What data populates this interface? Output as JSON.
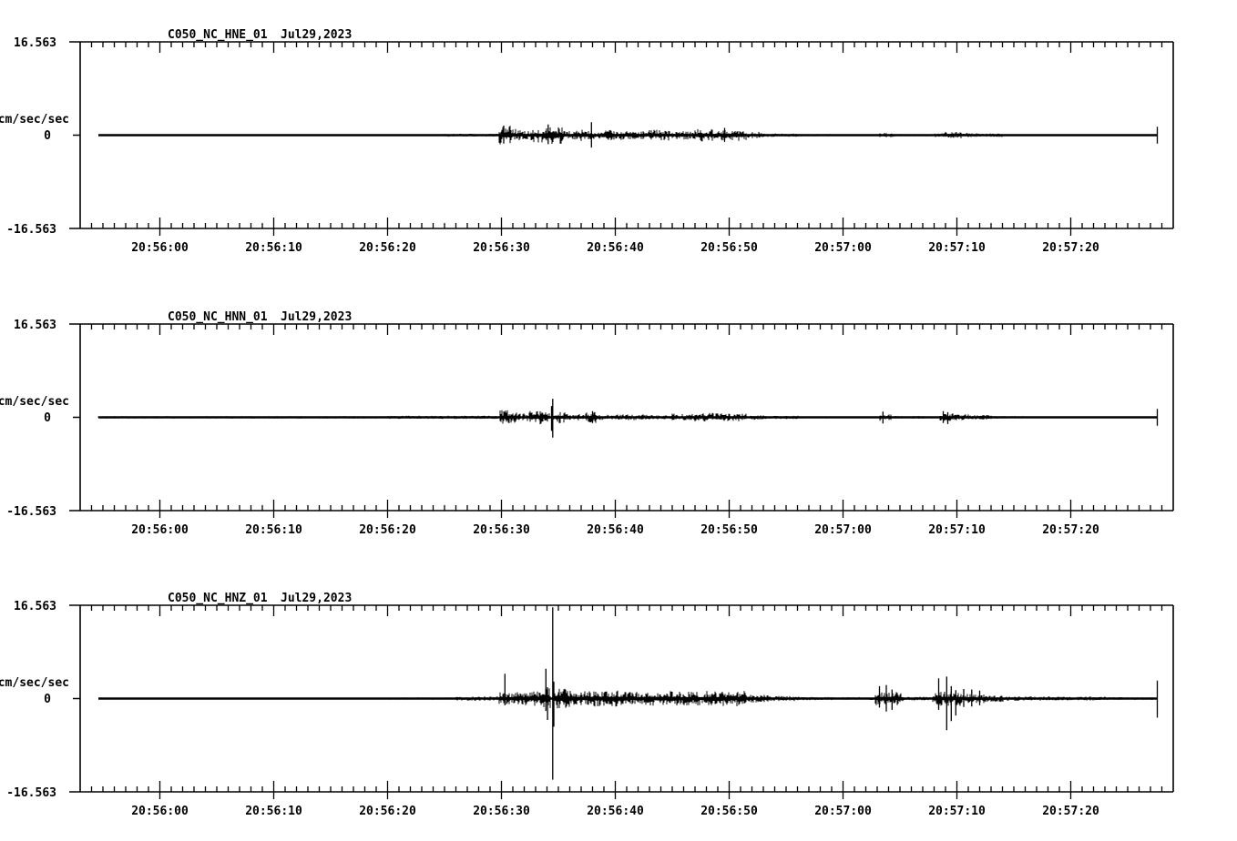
{
  "page": {
    "background_color": "#ffffff",
    "ink_color": "#000000",
    "kind": "seismogram strip chart, 3 stacked traces"
  },
  "chart_data": [
    {
      "type": "line",
      "title": "C050_NC_HNE_01",
      "date": "Jul29,2023",
      "ylabel": "cm/sec/sec",
      "yticks": [
        "16.563",
        "0",
        "-16.563"
      ],
      "ylim": [
        -16.563,
        16.563
      ],
      "x_start_time": "20:55:53",
      "x_end_time": "20:57:29",
      "x_span_sec": 96,
      "x_minor_step_sec": 1,
      "x_major_ticks": [
        "20:56:00",
        "20:56:10",
        "20:56:20",
        "20:56:30",
        "20:56:40",
        "20:56:50",
        "20:57:00",
        "20:57:10",
        "20:57:20"
      ],
      "x_major_offsets_sec": [
        7,
        17,
        27,
        37,
        47,
        57,
        67,
        77,
        87
      ],
      "grid": false,
      "legend": "none",
      "trace": {
        "start_sec": 1.6,
        "end_sec": 94.6,
        "envelope": [
          [
            1.6,
            27,
            0.04
          ],
          [
            27,
            32,
            0.1
          ],
          [
            32,
            36.6,
            0.2
          ],
          [
            36.8,
            37.8,
            1.3
          ],
          [
            37.8,
            38.6,
            0.9
          ],
          [
            38.6,
            39.6,
            0.6
          ],
          [
            39.6,
            40.6,
            1.0
          ],
          [
            40.6,
            42.4,
            1.2
          ],
          [
            42.4,
            43.6,
            0.6
          ],
          [
            43.6,
            44.6,
            0.8
          ],
          [
            44.6,
            46,
            0.55
          ],
          [
            46,
            48,
            0.7
          ],
          [
            48,
            50,
            0.55
          ],
          [
            50,
            52,
            0.75
          ],
          [
            52,
            54,
            0.6
          ],
          [
            54,
            56,
            0.85
          ],
          [
            56,
            58.5,
            0.8
          ],
          [
            58.5,
            60,
            0.45
          ],
          [
            60,
            63,
            0.25
          ],
          [
            63,
            66,
            0.15
          ],
          [
            66,
            70,
            0.1
          ],
          [
            70.2,
            71.5,
            0.35
          ],
          [
            71.5,
            75,
            0.15
          ],
          [
            75,
            76,
            0.3
          ],
          [
            76,
            77.5,
            0.45
          ],
          [
            77.5,
            79,
            0.3
          ],
          [
            79,
            81,
            0.25
          ],
          [
            81,
            86,
            0.12
          ],
          [
            86,
            94.4,
            0.06
          ]
        ],
        "spikes": [
          [
            37.2,
            1.7,
            1.5
          ],
          [
            41.1,
            1.9,
            1.6
          ],
          [
            44.9,
            2.3,
            2.2
          ],
          [
            56.6,
            1.3,
            1.2
          ],
          [
            94.6,
            1.5,
            1.5
          ]
        ]
      }
    },
    {
      "type": "line",
      "title": "C050_NC_HNN_01",
      "date": "Jul29,2023",
      "ylabel": "cm/sec/sec",
      "yticks": [
        "16.563",
        "0",
        "-16.563"
      ],
      "ylim": [
        -16.563,
        16.563
      ],
      "x_start_time": "20:55:53",
      "x_end_time": "20:57:29",
      "x_span_sec": 96,
      "x_minor_step_sec": 1,
      "x_major_ticks": [
        "20:56:00",
        "20:56:10",
        "20:56:20",
        "20:56:30",
        "20:56:40",
        "20:56:50",
        "20:57:00",
        "20:57:10",
        "20:57:20"
      ],
      "x_major_offsets_sec": [
        7,
        17,
        27,
        37,
        47,
        57,
        67,
        77,
        87
      ],
      "grid": false,
      "legend": "none",
      "trace": {
        "start_sec": 1.6,
        "end_sec": 94.6,
        "envelope": [
          [
            1.6,
            27,
            0.16
          ],
          [
            27,
            36.6,
            0.22
          ],
          [
            36.9,
            38.3,
            1.05
          ],
          [
            38.3,
            39.4,
            0.55
          ],
          [
            39.4,
            41.2,
            0.95
          ],
          [
            41.6,
            42.6,
            0.8
          ],
          [
            42.6,
            44.4,
            0.45
          ],
          [
            44.4,
            45.3,
            0.85
          ],
          [
            45.3,
            47,
            0.35
          ],
          [
            47,
            50,
            0.4
          ],
          [
            50,
            52,
            0.3
          ],
          [
            52,
            54,
            0.5
          ],
          [
            54,
            56,
            0.6
          ],
          [
            56,
            58.5,
            0.55
          ],
          [
            58.5,
            60,
            0.35
          ],
          [
            60,
            63,
            0.22
          ],
          [
            63,
            66,
            0.15
          ],
          [
            66,
            70,
            0.12
          ],
          [
            70.2,
            71.2,
            0.5
          ],
          [
            71.2,
            75,
            0.18
          ],
          [
            75.5,
            76.6,
            0.55
          ],
          [
            76.6,
            78,
            0.4
          ],
          [
            78,
            80,
            0.3
          ],
          [
            80,
            83,
            0.18
          ],
          [
            83,
            94.4,
            0.09
          ]
        ],
        "spikes": [
          [
            41.4,
            2.0,
            2.4
          ],
          [
            41.5,
            3.3,
            3.6
          ],
          [
            45.0,
            1.1,
            1.0
          ],
          [
            70.5,
            1.0,
            1.1
          ],
          [
            75.8,
            1.1,
            1.0
          ],
          [
            76.2,
            0.9,
            1.2
          ],
          [
            94.6,
            1.5,
            1.5
          ]
        ]
      }
    },
    {
      "type": "line",
      "title": "C050_NC_HNZ_01",
      "date": "Jul29,2023",
      "ylabel": "cm/sec/sec",
      "yticks": [
        "16.563",
        "0",
        "-16.563"
      ],
      "ylim": [
        -16.563,
        16.563
      ],
      "x_start_time": "20:55:53",
      "x_end_time": "20:57:29",
      "x_span_sec": 96,
      "x_minor_step_sec": 1,
      "x_major_ticks": [
        "20:56:00",
        "20:56:10",
        "20:56:20",
        "20:56:30",
        "20:56:40",
        "20:56:50",
        "20:57:00",
        "20:57:10",
        "20:57:20"
      ],
      "x_major_offsets_sec": [
        7,
        17,
        27,
        37,
        47,
        57,
        67,
        77,
        87
      ],
      "grid": false,
      "legend": "none",
      "trace": {
        "start_sec": 1.6,
        "end_sec": 94.6,
        "envelope": [
          [
            1.6,
            27,
            0.04
          ],
          [
            27,
            33,
            0.15
          ],
          [
            33,
            36.6,
            0.3
          ],
          [
            36.8,
            38.2,
            0.9
          ],
          [
            38.2,
            40.4,
            1.0
          ],
          [
            40.4,
            41.3,
            1.4
          ],
          [
            41.7,
            43,
            1.4
          ],
          [
            43,
            45,
            1.0
          ],
          [
            45,
            47.5,
            1.1
          ],
          [
            47.5,
            50,
            0.9
          ],
          [
            50,
            52.5,
            1.05
          ],
          [
            52.5,
            55,
            0.95
          ],
          [
            55,
            58.5,
            1.05
          ],
          [
            58.5,
            60.5,
            0.55
          ],
          [
            60.5,
            63,
            0.35
          ],
          [
            63,
            65,
            0.25
          ],
          [
            65,
            69.6,
            0.2
          ],
          [
            69.8,
            72.2,
            0.9
          ],
          [
            72.2,
            74.6,
            0.25
          ],
          [
            74.9,
            77.3,
            1.0
          ],
          [
            77.3,
            79.5,
            0.7
          ],
          [
            79.5,
            81,
            0.45
          ],
          [
            81,
            83,
            0.3
          ],
          [
            83,
            90,
            0.28
          ],
          [
            90,
            94.4,
            0.18
          ]
        ],
        "spikes": [
          [
            37.3,
            4.4,
            1.2
          ],
          [
            40.9,
            5.3,
            2.2
          ],
          [
            41.05,
            2.0,
            3.8
          ],
          [
            41.5,
            16.2,
            14.4
          ],
          [
            41.6,
            3.0,
            5.0
          ],
          [
            70.2,
            2.2,
            1.6
          ],
          [
            70.8,
            2.4,
            2.3
          ],
          [
            71.3,
            1.6,
            2.0
          ],
          [
            75.4,
            3.6,
            2.0
          ],
          [
            76.1,
            3.9,
            5.6
          ],
          [
            76.5,
            2.2,
            4.0
          ],
          [
            76.9,
            1.5,
            3.0
          ],
          [
            77.6,
            1.7,
            1.5
          ],
          [
            78.3,
            1.6,
            1.4
          ],
          [
            79.0,
            1.4,
            1.2
          ],
          [
            94.6,
            3.2,
            3.4
          ]
        ]
      }
    }
  ]
}
